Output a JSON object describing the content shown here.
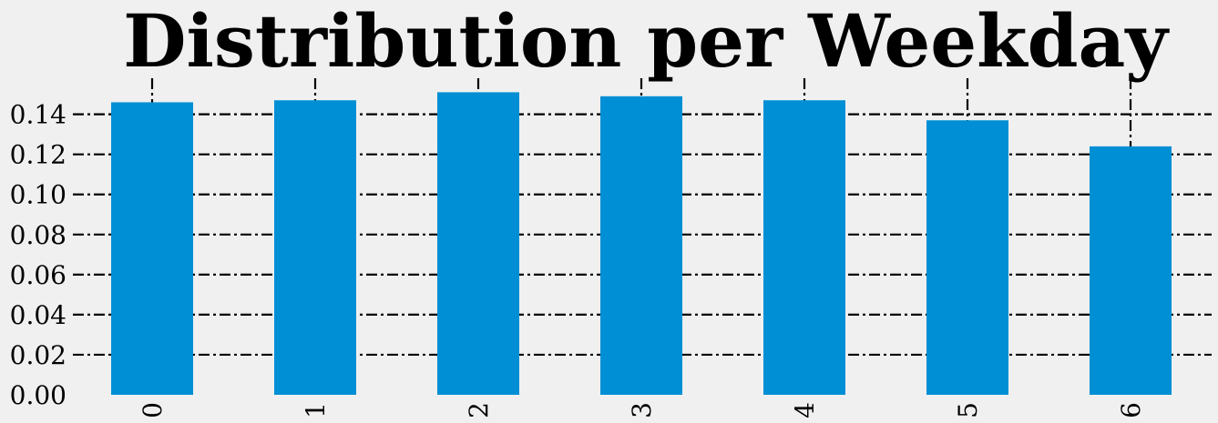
{
  "chart_data": {
    "type": "bar",
    "title": "Distribution per Weekday",
    "xlabel": "",
    "ylabel": "",
    "categories": [
      "0",
      "1",
      "2",
      "3",
      "4",
      "5",
      "6"
    ],
    "values": [
      0.146,
      0.147,
      0.151,
      0.149,
      0.147,
      0.137,
      0.124
    ],
    "yticks": [
      0.0,
      0.02,
      0.04,
      0.06,
      0.08,
      0.1,
      0.12,
      0.14
    ],
    "ytick_labels": [
      "0.00",
      "0.02",
      "0.04",
      "0.06",
      "0.08",
      "0.10",
      "0.12",
      "0.14"
    ],
    "ylim": [
      0,
      0.158
    ],
    "grid": true,
    "grid_style": "dash-dot",
    "bar_color": "#008fd5",
    "background_color": "#f0f0f0"
  }
}
